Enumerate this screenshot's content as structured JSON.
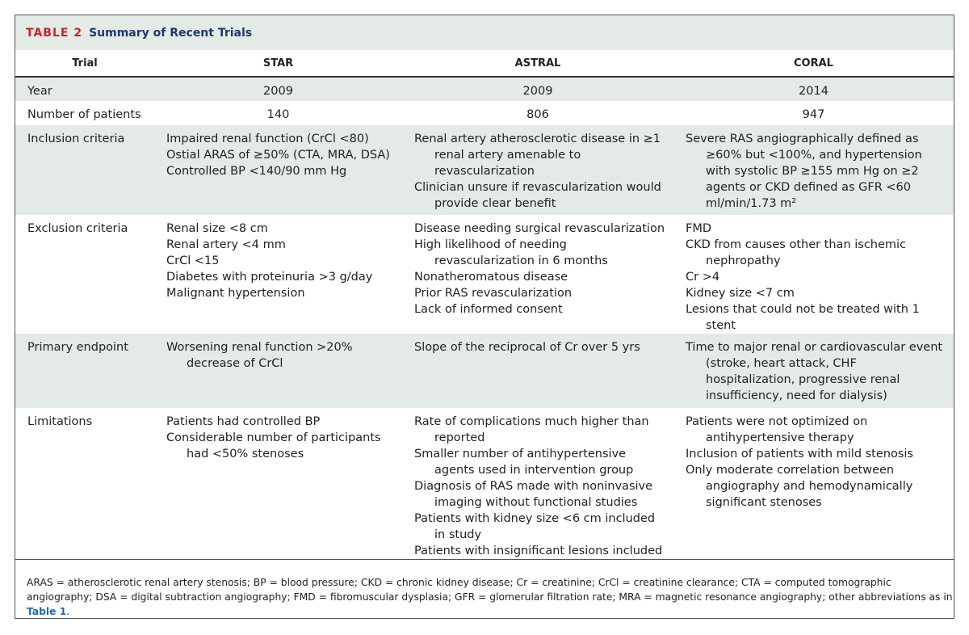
{
  "header": {
    "label": "TABLE 2",
    "title": "Summary of Recent Trials"
  },
  "table": {
    "columns": [
      "Trial",
      "STAR",
      "ASTRAL",
      "CORAL"
    ],
    "rows": [
      {
        "label": "Year",
        "cells": [
          [
            "2009"
          ],
          [
            "2009"
          ],
          [
            "2014"
          ]
        ]
      },
      {
        "label": "Number of patients",
        "cells": [
          [
            "140"
          ],
          [
            "806"
          ],
          [
            "947"
          ]
        ]
      },
      {
        "label": "Inclusion criteria",
        "cells": [
          [
            "Impaired renal function (CrCl <80)",
            "Ostial ARAS of ≥50% (CTA, MRA, DSA)",
            "Controlled BP <140/90 mm Hg"
          ],
          [
            "Renal artery atherosclerotic disease in ≥1 renal artery amenable to revascularization",
            "Clinician unsure if revascularization would provide clear benefit"
          ],
          [
            "Severe RAS angiographically defined as ≥60% but <100%, and hypertension with systolic BP ≥155 mm Hg on ≥2 agents or CKD defined as GFR <60 ml/min/1.73 m²"
          ]
        ]
      },
      {
        "label": "Exclusion criteria",
        "cells": [
          [
            "Renal size <8 cm",
            "Renal artery <4 mm",
            "CrCl <15",
            "Diabetes with proteinuria >3 g/day",
            "Malignant hypertension"
          ],
          [
            "Disease needing surgical revascularization",
            "High likelihood of needing revascularization in 6 months",
            "Nonatheromatous disease",
            "Prior RAS revascularization",
            "Lack of informed consent"
          ],
          [
            "FMD",
            "CKD from causes other than ischemic nephropathy",
            "Cr >4",
            "Kidney size <7 cm",
            "Lesions that could not be treated with 1 stent"
          ]
        ]
      },
      {
        "label": "Primary endpoint",
        "cells": [
          [
            "Worsening renal function >20% decrease of CrCl"
          ],
          [
            "Slope of the reciprocal of Cr over 5 yrs"
          ],
          [
            "Time to major renal or cardiovascular event (stroke, heart attack, CHF hospitalization, progressive renal insufficiency, need for dialysis)"
          ]
        ]
      },
      {
        "label": "Limitations",
        "cells": [
          [
            "Patients had controlled BP",
            "Considerable number of participants had <50% stenoses"
          ],
          [
            "Rate of complications much higher than reported",
            "Smaller number of antihypertensive agents used in intervention group",
            "Diagnosis of RAS made with noninvasive imaging without functional studies",
            "Patients with kidney size <6 cm included in study",
            "Patients with insignificant lesions included"
          ],
          [
            "Patients were not optimized on antihypertensive therapy",
            "Inclusion of patients with mild stenosis",
            "Only moderate correlation between angiography and hemodynamically significant stenoses"
          ]
        ]
      }
    ]
  },
  "footnote": {
    "text": "ARAS = atherosclerotic renal artery stenosis; BP = blood pressure; CKD = chronic kidney disease; Cr = creatinine; CrCl = creatinine clearance; CTA = computed tomographic angiography; DSA = digital subtraction angiography; FMD = fibromuscular dysplasia; GFR = glomerular filtration rate; MRA = magnetic resonance angiography; other abbreviations as in ",
    "link": "Table 1",
    "end": "."
  }
}
